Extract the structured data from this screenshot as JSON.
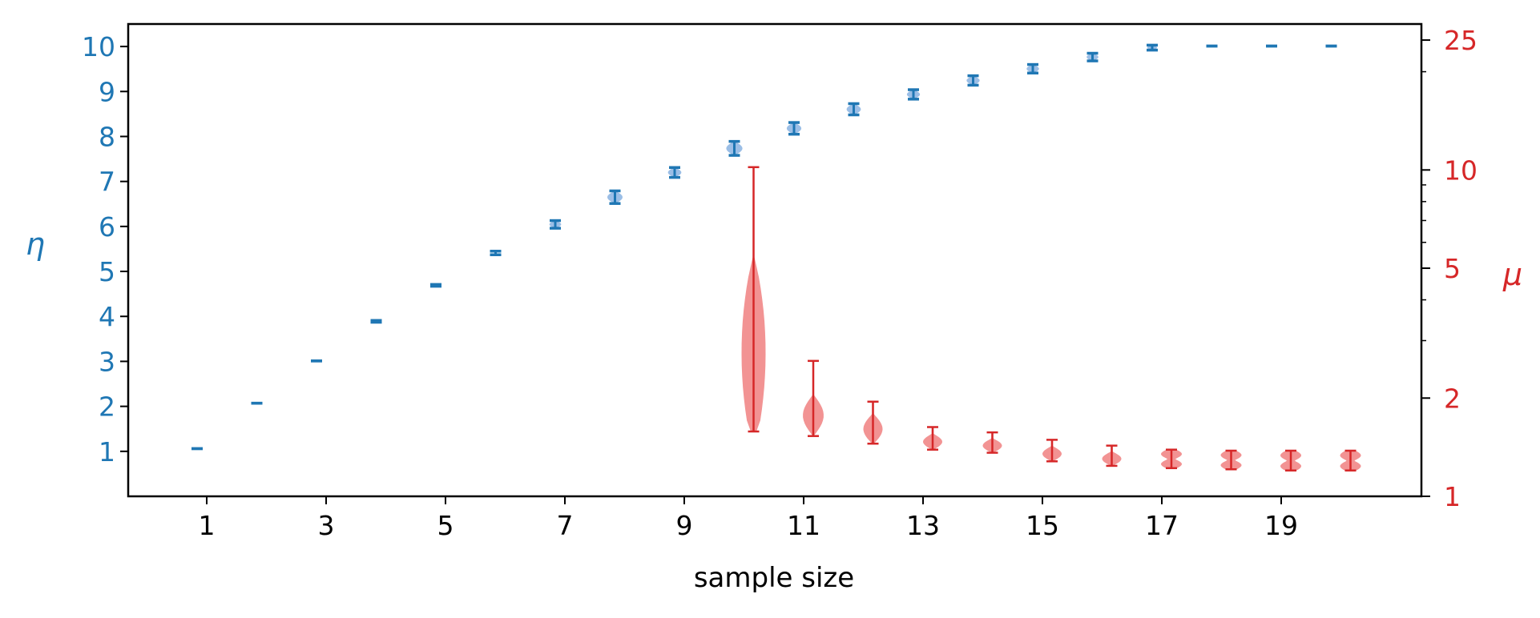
{
  "chart_data": {
    "type": "violin",
    "xlabel": "sample size",
    "ylabel_left": "η",
    "ylabel_right": "μ",
    "x_ticks": [
      "1",
      "3",
      "5",
      "7",
      "9",
      "11",
      "13",
      "15",
      "17",
      "19"
    ],
    "left_axis": {
      "range": [
        0,
        10.5
      ],
      "ticks": [
        "1",
        "2",
        "3",
        "4",
        "5",
        "6",
        "7",
        "8",
        "9",
        "10"
      ],
      "color": "#1f77b4"
    },
    "right_axis": {
      "scale": "log",
      "range": [
        1,
        28
      ],
      "ticks": [
        "1",
        "2",
        "5",
        "10",
        "25"
      ],
      "color": "#d62728"
    },
    "series": [
      {
        "axis": "left",
        "color": "#1f77b4",
        "fill": "#8ab3e2",
        "points": [
          {
            "x": 1,
            "min": 1.06,
            "max": 1.06
          },
          {
            "x": 2,
            "min": 2.07,
            "max": 2.07
          },
          {
            "x": 3,
            "min": 3.01,
            "max": 3.01
          },
          {
            "x": 4,
            "min": 3.87,
            "max": 3.91
          },
          {
            "x": 5,
            "min": 4.67,
            "max": 4.71
          },
          {
            "x": 6,
            "min": 5.37,
            "max": 5.45
          },
          {
            "x": 7,
            "min": 5.96,
            "max": 6.13
          },
          {
            "x": 8,
            "min": 6.51,
            "max": 6.79
          },
          {
            "x": 9,
            "min": 7.09,
            "max": 7.31
          },
          {
            "x": 10,
            "min": 7.58,
            "max": 7.89
          },
          {
            "x": 11,
            "min": 8.05,
            "max": 8.31
          },
          {
            "x": 12,
            "min": 8.48,
            "max": 8.73
          },
          {
            "x": 13,
            "min": 8.83,
            "max": 9.04
          },
          {
            "x": 14,
            "min": 9.14,
            "max": 9.35
          },
          {
            "x": 15,
            "min": 9.41,
            "max": 9.6
          },
          {
            "x": 16,
            "min": 9.68,
            "max": 9.85
          },
          {
            "x": 17,
            "min": 9.92,
            "max": 10.03
          },
          {
            "x": 18,
            "min": 10.01,
            "max": 10.01
          },
          {
            "x": 19,
            "min": 10.01,
            "max": 10.01
          },
          {
            "x": 20,
            "min": 10.01,
            "max": 10.01
          }
        ]
      },
      {
        "axis": "right",
        "color": "#d62728",
        "fill": "#f08080",
        "points": [
          {
            "x": 10,
            "min": 1.58,
            "max": 10.2
          },
          {
            "x": 11,
            "min": 1.53,
            "max": 2.6
          },
          {
            "x": 12,
            "min": 1.45,
            "max": 1.95
          },
          {
            "x": 13,
            "min": 1.39,
            "max": 1.63
          },
          {
            "x": 14,
            "min": 1.36,
            "max": 1.57
          },
          {
            "x": 15,
            "min": 1.28,
            "max": 1.49
          },
          {
            "x": 16,
            "min": 1.24,
            "max": 1.43
          },
          {
            "x": 17,
            "min": 1.22,
            "max": 1.39
          },
          {
            "x": 18,
            "min": 1.21,
            "max": 1.38
          },
          {
            "x": 19,
            "min": 1.2,
            "max": 1.38
          },
          {
            "x": 20,
            "min": 1.2,
            "max": 1.38
          }
        ]
      }
    ]
  }
}
